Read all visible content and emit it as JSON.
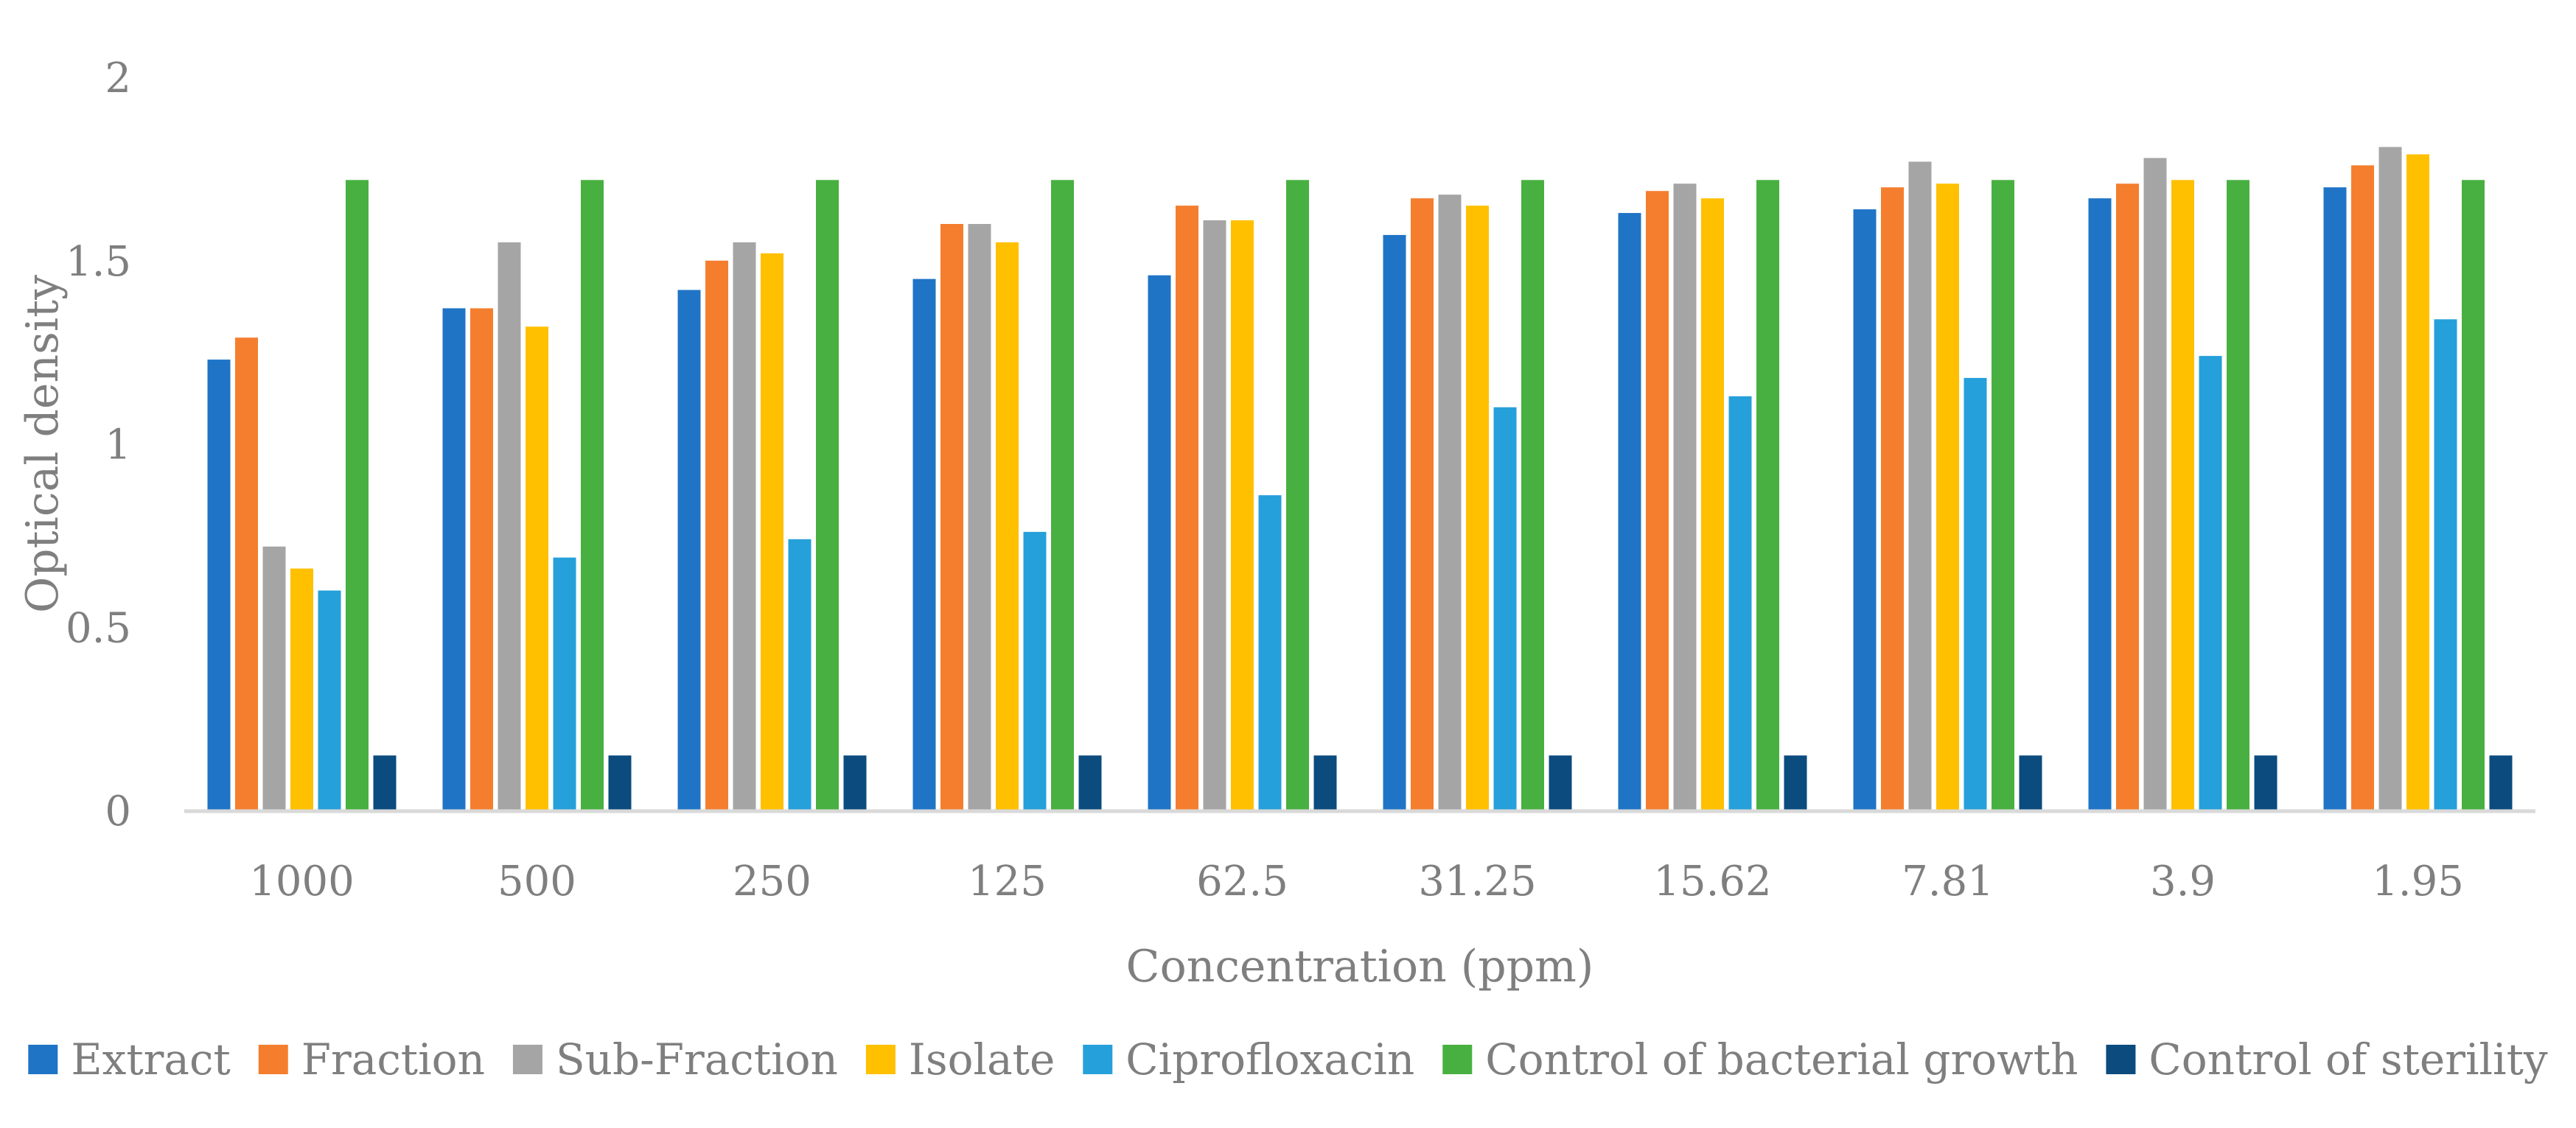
{
  "chart_data": {
    "type": "bar",
    "title": "",
    "xlabel": "Concentration (ppm)",
    "ylabel": "Optical density",
    "ylim": [
      0,
      2
    ],
    "yticks": [
      "0",
      "0.5",
      "1",
      "1.5",
      "2"
    ],
    "ytick_values": [
      0,
      0.5,
      1,
      1.5,
      2
    ],
    "grid": false,
    "legend_position": "bottom",
    "categories": [
      "1000",
      "500",
      "250",
      "125",
      "62.5",
      "31.25",
      "15.62",
      "7.81",
      "3.9",
      "1.95"
    ],
    "series": [
      {
        "name": "Extract",
        "color": "#1f74c6",
        "values": [
          1.23,
          1.37,
          1.42,
          1.45,
          1.46,
          1.57,
          1.63,
          1.64,
          1.67,
          1.7
        ]
      },
      {
        "name": "Fraction",
        "color": "#f47e2e",
        "values": [
          1.29,
          1.37,
          1.5,
          1.6,
          1.65,
          1.67,
          1.69,
          1.7,
          1.71,
          1.76
        ]
      },
      {
        "name": "Sub-Fraction",
        "color": "#a5a5a5",
        "values": [
          0.72,
          1.55,
          1.55,
          1.6,
          1.61,
          1.68,
          1.71,
          1.77,
          1.78,
          1.81
        ]
      },
      {
        "name": "Isolate",
        "color": "#ffc000",
        "values": [
          0.66,
          1.32,
          1.52,
          1.55,
          1.61,
          1.65,
          1.67,
          1.71,
          1.72,
          1.79
        ]
      },
      {
        "name": "Ciprofloxacin",
        "color": "#26a0da",
        "values": [
          0.6,
          0.69,
          0.74,
          0.76,
          0.86,
          1.1,
          1.13,
          1.18,
          1.24,
          1.34
        ]
      },
      {
        "name": "Control of bacterial growth",
        "color": "#48b040",
        "values": [
          1.72,
          1.72,
          1.72,
          1.72,
          1.72,
          1.72,
          1.72,
          1.72,
          1.72,
          1.72
        ]
      },
      {
        "name": "Control of sterility",
        "color": "#0b4b7e",
        "values": [
          0.15,
          0.15,
          0.15,
          0.15,
          0.15,
          0.15,
          0.15,
          0.15,
          0.15,
          0.15
        ]
      }
    ]
  }
}
